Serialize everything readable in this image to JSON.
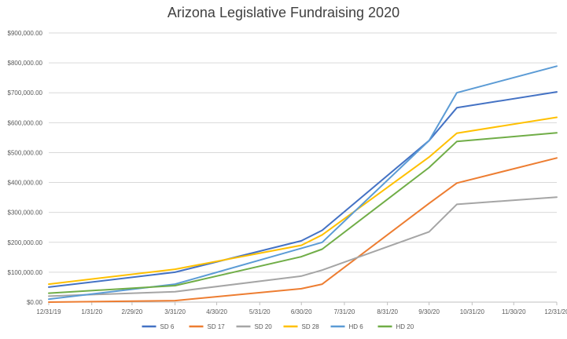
{
  "chart_data": {
    "type": "line",
    "title": "Arizona Legislative Fundraising 2020",
    "xlabel": "",
    "ylabel": "",
    "ylim": [
      0,
      900000
    ],
    "yticks": [
      0,
      100000,
      200000,
      300000,
      400000,
      500000,
      600000,
      700000,
      800000,
      900000
    ],
    "ytick_labels": [
      "$0.00",
      "$100,000.00",
      "$200,000.00",
      "$300,000.00",
      "$400,000.00",
      "$500,000.00",
      "$600,000.00",
      "$700,000.00",
      "$800,000.00",
      "$900,000.00"
    ],
    "xlim": [
      "2019-12-31",
      "2020-12-31"
    ],
    "xticks": [
      "2019-12-31",
      "2020-01-31",
      "2020-02-29",
      "2020-03-31",
      "2020-04-30",
      "2020-05-31",
      "2020-06-30",
      "2020-07-31",
      "2020-08-31",
      "2020-09-30",
      "2020-10-31",
      "2020-11-30",
      "2020-12-31"
    ],
    "xtick_labels": [
      "12/31/19",
      "1/31/20",
      "2/29/20",
      "3/31/20",
      "4/30/20",
      "5/31/20",
      "6/30/20",
      "7/31/20",
      "8/31/20",
      "9/30/20",
      "10/31/20",
      "11/30/20",
      "12/31/20"
    ],
    "grid": true,
    "legend_position": "bottom",
    "series": [
      {
        "name": "SD 6",
        "color": "#4472C4",
        "x": [
          "2019-12-31",
          "2020-03-31",
          "2020-06-30",
          "2020-07-15",
          "2020-09-30",
          "2020-10-20",
          "2020-12-31"
        ],
        "y": [
          50000,
          100000,
          205000,
          240000,
          540000,
          650000,
          703000
        ]
      },
      {
        "name": "SD 17",
        "color": "#ED7D31",
        "x": [
          "2019-12-31",
          "2020-03-31",
          "2020-06-30",
          "2020-07-15",
          "2020-09-30",
          "2020-10-20",
          "2020-12-31"
        ],
        "y": [
          0,
          5000,
          45000,
          60000,
          330000,
          398000,
          482000
        ]
      },
      {
        "name": "SD 20",
        "color": "#A5A5A5",
        "x": [
          "2019-12-31",
          "2020-03-31",
          "2020-06-30",
          "2020-07-15",
          "2020-09-30",
          "2020-10-20",
          "2020-12-31"
        ],
        "y": [
          20000,
          35000,
          87000,
          107000,
          235000,
          327000,
          351000
        ]
      },
      {
        "name": "SD 28",
        "color": "#FFC000",
        "x": [
          "2019-12-31",
          "2020-03-31",
          "2020-06-30",
          "2020-07-15",
          "2020-09-30",
          "2020-10-20",
          "2020-12-31"
        ],
        "y": [
          60000,
          110000,
          190000,
          225000,
          485000,
          565000,
          618000
        ]
      },
      {
        "name": "HD 6",
        "color": "#5B9BD5",
        "x": [
          "2019-12-31",
          "2020-03-31",
          "2020-06-30",
          "2020-07-15",
          "2020-09-30",
          "2020-10-20",
          "2020-12-31"
        ],
        "y": [
          10000,
          60000,
          180000,
          200000,
          540000,
          700000,
          789000
        ]
      },
      {
        "name": "HD 20",
        "color": "#70AD47",
        "x": [
          "2019-12-31",
          "2020-03-31",
          "2020-06-30",
          "2020-07-15",
          "2020-09-30",
          "2020-10-20",
          "2020-12-31"
        ],
        "y": [
          30000,
          55000,
          152000,
          177000,
          450000,
          537000,
          566000
        ]
      }
    ]
  }
}
